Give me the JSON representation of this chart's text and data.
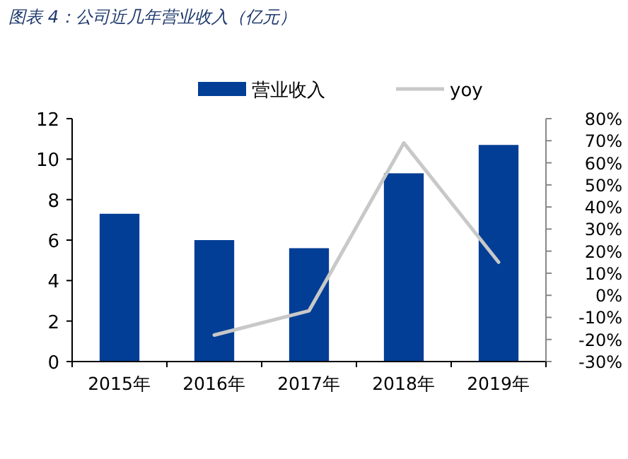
{
  "chart_data": {
    "type": "bar",
    "title": "图表 4：公司近几年营业收入（亿元）",
    "categories": [
      "2015年",
      "2016年",
      "2017年",
      "2018年",
      "2019年"
    ],
    "series": [
      {
        "name": "营业收入",
        "color": "#023e96",
        "values": [
          7.3,
          6.0,
          5.6,
          9.3,
          10.7
        ]
      },
      {
        "name": "yoy",
        "type": "line",
        "axis": "y2",
        "color": "#c8c8c8",
        "values": [
          null,
          -18,
          -7,
          69,
          15
        ]
      }
    ],
    "ylim": [
      0,
      12
    ],
    "yticks": [
      0,
      2,
      4,
      6,
      8,
      10,
      12
    ],
    "y2lim": [
      -30,
      80
    ],
    "y2ticks": [
      {
        "value": 80,
        "label": "80%"
      },
      {
        "value": 70,
        "label": "70%"
      },
      {
        "value": 60,
        "label": "60%"
      },
      {
        "value": 50,
        "label": "50%"
      },
      {
        "value": 40,
        "label": "40%"
      },
      {
        "value": 30,
        "label": "30%"
      },
      {
        "value": 20,
        "label": "20%"
      },
      {
        "value": 10,
        "label": "10%"
      },
      {
        "value": 0,
        "label": "0%"
      },
      {
        "value": -10,
        "label": "-10%"
      },
      {
        "value": -20,
        "label": "-20%"
      },
      {
        "value": -30,
        "label": "-30%"
      }
    ],
    "legend": "top",
    "grid": false
  }
}
